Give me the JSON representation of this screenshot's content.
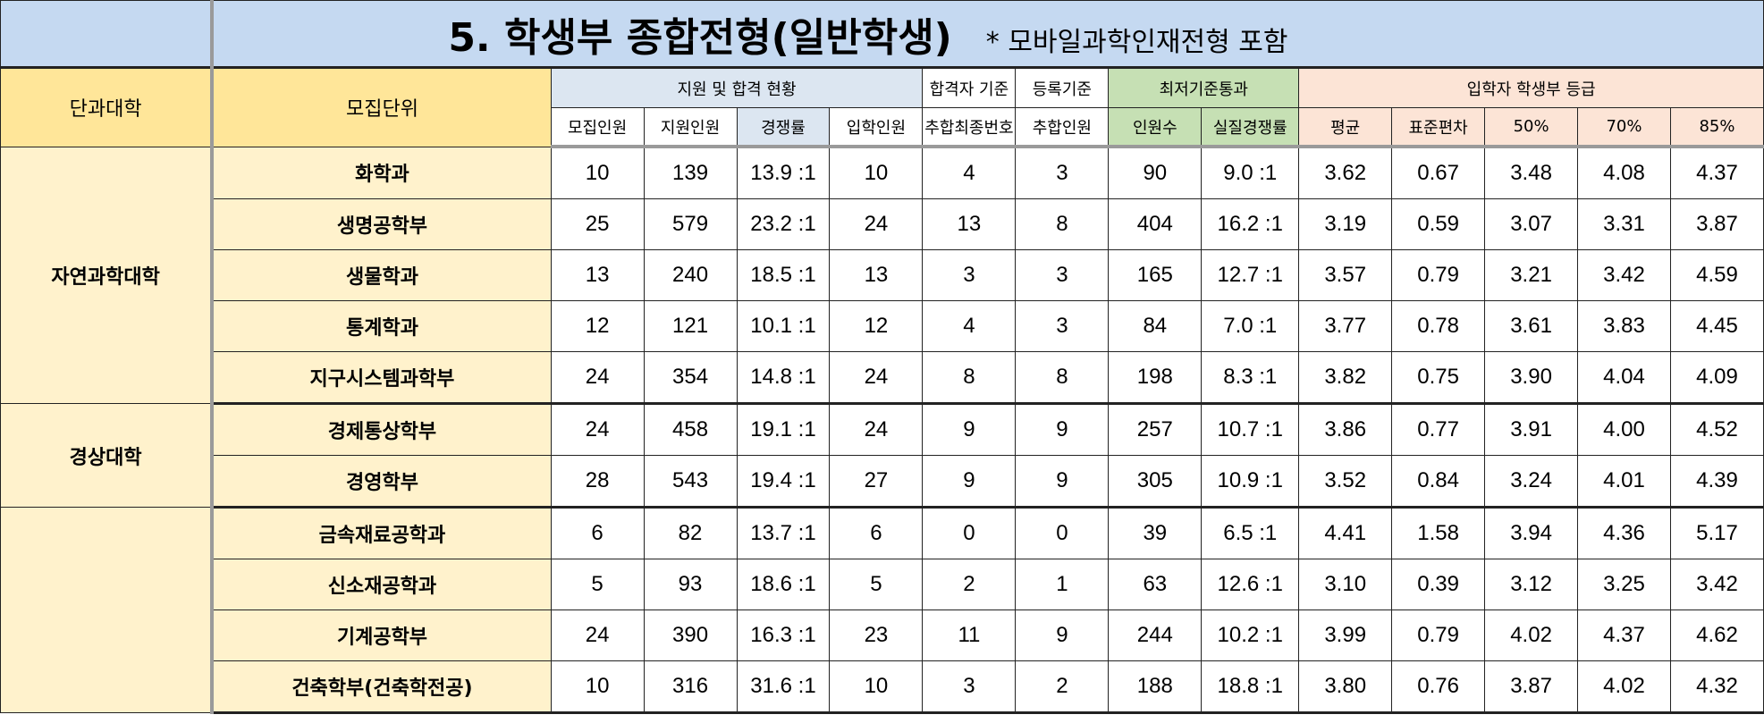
{
  "title": "5. 학생부 종합전형(일반학생)",
  "title_note": "* 모바일과학인재전형 포함",
  "headers": {
    "college": "단과대학",
    "unit": "모집단위",
    "group_apply": "지원 및 합격 현황",
    "group_pass": "합격자 기준",
    "group_register": "등록기준",
    "group_min": "최저기준통과",
    "group_grade": "입학자 학생부 등급",
    "quota": "모집인원",
    "applicants": "지원인원",
    "ratio": "경쟁률",
    "enrolled": "입학인원",
    "last_extra_no": "추합최종번호",
    "extra_count": "추합인원",
    "passers": "인원수",
    "actual_ratio": "실질경쟁률",
    "avg": "평균",
    "std": "표준편차",
    "p50": "50%",
    "p70": "70%",
    "p85": "85%"
  },
  "groups": [
    {
      "college": "자연과학대학",
      "rows": [
        {
          "unit": "화학과",
          "quota": "10",
          "applicants": "139",
          "ratio": "13.9 :1",
          "enrolled": "10",
          "last_extra_no": "4",
          "extra_count": "3",
          "passers": "90",
          "actual_ratio": "9.0 :1",
          "avg": "3.62",
          "std": "0.67",
          "p50": "3.48",
          "p70": "4.08",
          "p85": "4.37"
        },
        {
          "unit": "생명공학부",
          "quota": "25",
          "applicants": "579",
          "ratio": "23.2 :1",
          "enrolled": "24",
          "last_extra_no": "13",
          "extra_count": "8",
          "passers": "404",
          "actual_ratio": "16.2 :1",
          "avg": "3.19",
          "std": "0.59",
          "p50": "3.07",
          "p70": "3.31",
          "p85": "3.87"
        },
        {
          "unit": "생물학과",
          "quota": "13",
          "applicants": "240",
          "ratio": "18.5 :1",
          "enrolled": "13",
          "last_extra_no": "3",
          "extra_count": "3",
          "passers": "165",
          "actual_ratio": "12.7 :1",
          "avg": "3.57",
          "std": "0.79",
          "p50": "3.21",
          "p70": "3.42",
          "p85": "4.59"
        },
        {
          "unit": "통계학과",
          "quota": "12",
          "applicants": "121",
          "ratio": "10.1 :1",
          "enrolled": "12",
          "last_extra_no": "4",
          "extra_count": "3",
          "passers": "84",
          "actual_ratio": "7.0 :1",
          "avg": "3.77",
          "std": "0.78",
          "p50": "3.61",
          "p70": "3.83",
          "p85": "4.45"
        },
        {
          "unit": "지구시스템과학부",
          "quota": "24",
          "applicants": "354",
          "ratio": "14.8 :1",
          "enrolled": "24",
          "last_extra_no": "8",
          "extra_count": "8",
          "passers": "198",
          "actual_ratio": "8.3 :1",
          "avg": "3.82",
          "std": "0.75",
          "p50": "3.90",
          "p70": "4.04",
          "p85": "4.09"
        }
      ]
    },
    {
      "college": "경상대학",
      "rows": [
        {
          "unit": "경제통상학부",
          "quota": "24",
          "applicants": "458",
          "ratio": "19.1 :1",
          "enrolled": "24",
          "last_extra_no": "9",
          "extra_count": "9",
          "passers": "257",
          "actual_ratio": "10.7 :1",
          "avg": "3.86",
          "std": "0.77",
          "p50": "3.91",
          "p70": "4.00",
          "p85": "4.52"
        },
        {
          "unit": "경영학부",
          "quota": "28",
          "applicants": "543",
          "ratio": "19.4 :1",
          "enrolled": "27",
          "last_extra_no": "9",
          "extra_count": "9",
          "passers": "305",
          "actual_ratio": "10.9 :1",
          "avg": "3.52",
          "std": "0.84",
          "p50": "3.24",
          "p70": "4.01",
          "p85": "4.39"
        }
      ]
    },
    {
      "college": "",
      "rows": [
        {
          "unit": "금속재료공학과",
          "quota": "6",
          "applicants": "82",
          "ratio": "13.7 :1",
          "enrolled": "6",
          "last_extra_no": "0",
          "extra_count": "0",
          "passers": "39",
          "actual_ratio": "6.5 :1",
          "avg": "4.41",
          "std": "1.58",
          "p50": "3.94",
          "p70": "4.36",
          "p85": "5.17"
        },
        {
          "unit": "신소재공학과",
          "quota": "5",
          "applicants": "93",
          "ratio": "18.6 :1",
          "enrolled": "5",
          "last_extra_no": "2",
          "extra_count": "1",
          "passers": "63",
          "actual_ratio": "12.6 :1",
          "avg": "3.10",
          "std": "0.39",
          "p50": "3.12",
          "p70": "3.25",
          "p85": "3.42"
        },
        {
          "unit": "기계공학부",
          "quota": "24",
          "applicants": "390",
          "ratio": "16.3 :1",
          "enrolled": "23",
          "last_extra_no": "11",
          "extra_count": "9",
          "passers": "244",
          "actual_ratio": "10.2 :1",
          "avg": "3.99",
          "std": "0.79",
          "p50": "4.02",
          "p70": "4.37",
          "p85": "4.62"
        },
        {
          "unit": "건축학부(건축학전공)",
          "quota": "10",
          "applicants": "316",
          "ratio": "31.6 :1",
          "enrolled": "10",
          "last_extra_no": "3",
          "extra_count": "2",
          "passers": "188",
          "actual_ratio": "18.8 :1",
          "avg": "3.80",
          "std": "0.76",
          "p50": "3.87",
          "p70": "4.02",
          "p85": "4.32"
        }
      ]
    }
  ],
  "colors": {
    "title_bg": "#c5d9f1",
    "yellow_header": "#ffe699",
    "yellow_body": "#fff2cc",
    "blue_header": "#dce6f1",
    "green_header": "#c6e0b4",
    "orange_header": "#fce4d6"
  }
}
